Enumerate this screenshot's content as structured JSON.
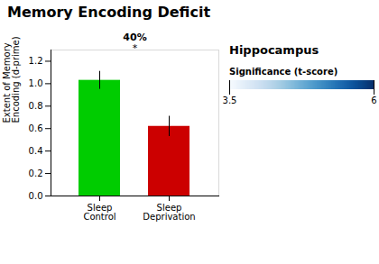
{
  "chart_data": {
    "type": "bar",
    "title": "Memory Encoding Deficit",
    "categories": [
      "Sleep\nControl",
      "Sleep\nDeprivation"
    ],
    "values": [
      1.03,
      0.62
    ],
    "errors": [
      0.08,
      0.09
    ],
    "colors": [
      "#00cc00",
      "#cc0000"
    ],
    "ylabel": "Extent of Memory\nEncoding (d-prime)",
    "ylim": [
      0,
      1.3
    ],
    "yticks": [
      {
        "value": 0,
        "label": "0.0"
      },
      0.2,
      0.4,
      0.6,
      0.8,
      {
        "value": 1,
        "label": "1.0"
      },
      1.2
    ],
    "annotations": [
      "40%",
      "*",
      "Hippocampus"
    ],
    "colorbar": {
      "label": "Significance (t-score)",
      "range": [
        3.5,
        6
      ],
      "ticks": [
        3.5,
        6
      ]
    }
  }
}
